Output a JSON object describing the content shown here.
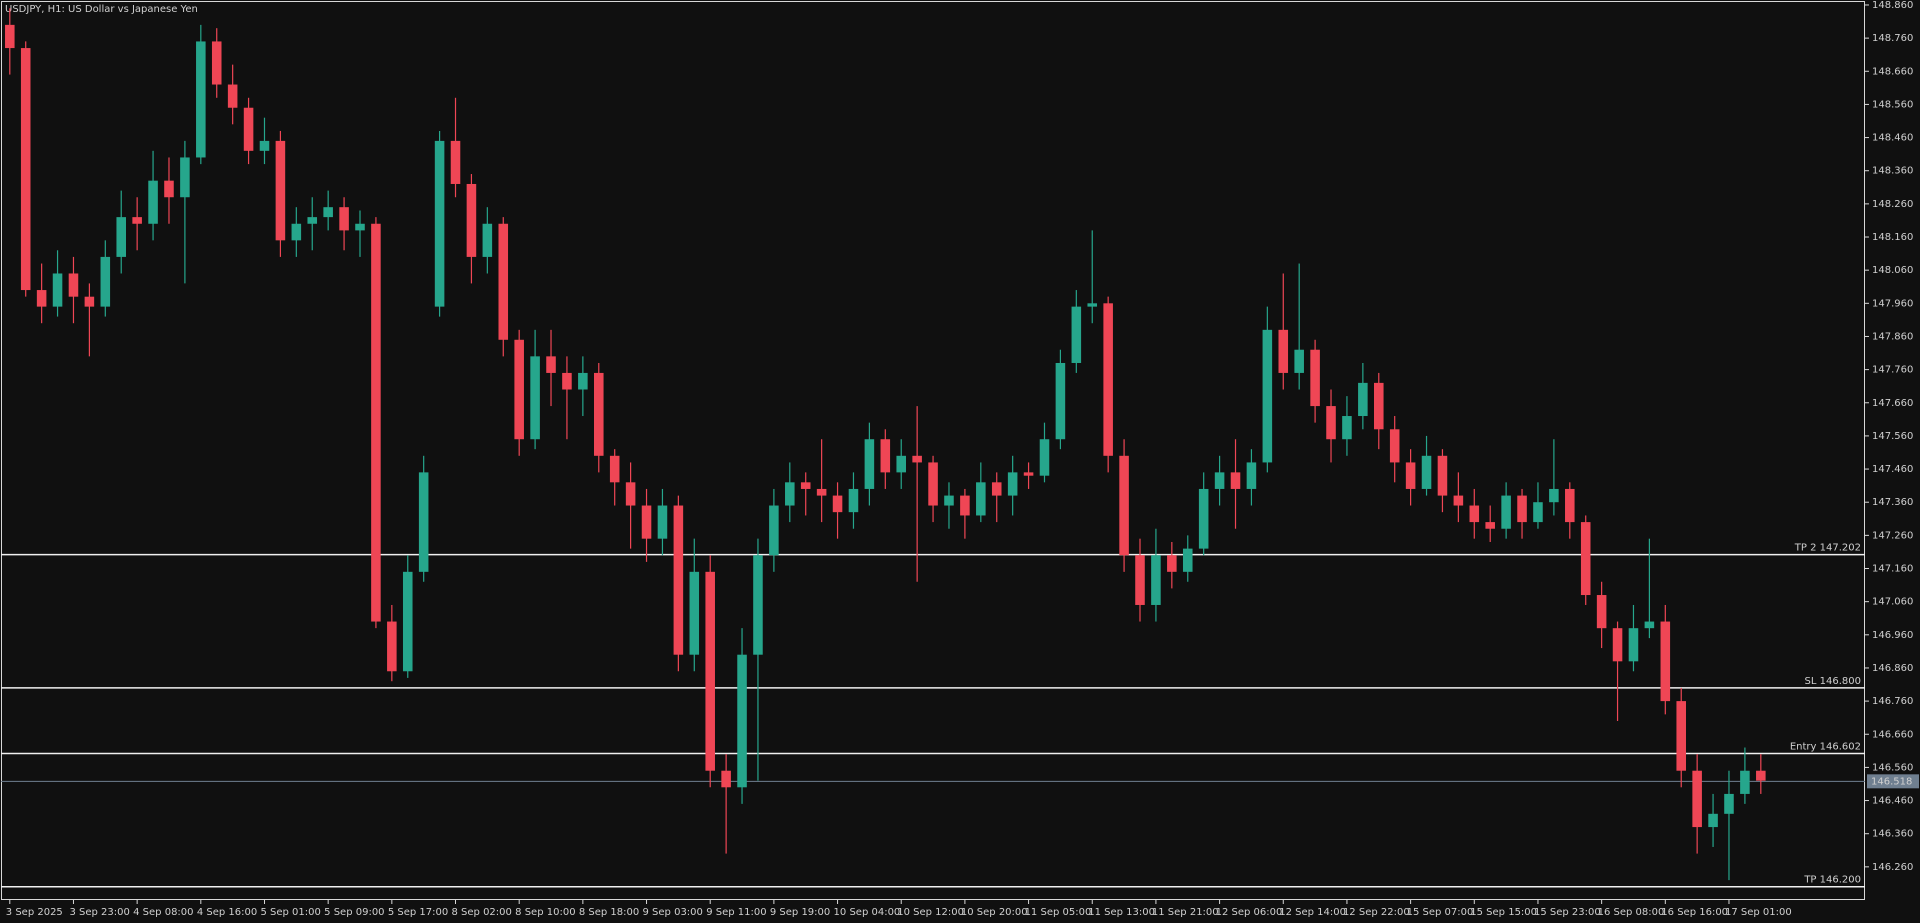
{
  "chart_data": {
    "type": "candlestick",
    "title": "USDJPY, H1:  US Dollar vs Japanese Yen",
    "up_color": "#26a68c",
    "down_color": "#ef4655",
    "ylim": [
      146.16,
      148.875
    ],
    "yticks": [
      {
        "value": 146.26,
        "label": "146.260"
      },
      {
        "value": 146.36,
        "label": "146.360"
      },
      {
        "value": 146.46,
        "label": "146.460"
      },
      {
        "value": 146.56,
        "label": "146.560"
      },
      {
        "value": 146.66,
        "label": "146.660"
      },
      {
        "value": 146.76,
        "label": "146.760"
      },
      {
        "value": 146.86,
        "label": "146.860"
      },
      {
        "value": 146.96,
        "label": "146.960"
      },
      {
        "value": 147.06,
        "label": "147.060"
      },
      {
        "value": 147.16,
        "label": "147.160"
      },
      {
        "value": 147.26,
        "label": "147.260"
      },
      {
        "value": 147.36,
        "label": "147.360"
      },
      {
        "value": 147.46,
        "label": "147.460"
      },
      {
        "value": 147.56,
        "label": "147.560"
      },
      {
        "value": 147.66,
        "label": "147.660"
      },
      {
        "value": 147.76,
        "label": "147.760"
      },
      {
        "value": 147.86,
        "label": "147.860"
      },
      {
        "value": 147.96,
        "label": "147.960"
      },
      {
        "value": 148.06,
        "label": "148.060"
      },
      {
        "value": 148.16,
        "label": "148.160"
      },
      {
        "value": 148.26,
        "label": "148.260"
      },
      {
        "value": 148.36,
        "label": "148.360"
      },
      {
        "value": 148.46,
        "label": "148.460"
      },
      {
        "value": 148.56,
        "label": "148.560"
      },
      {
        "value": 148.66,
        "label": "148.660"
      },
      {
        "value": 148.76,
        "label": "148.760"
      },
      {
        "value": 148.86,
        "label": "148.860"
      }
    ],
    "xticks": [
      {
        "value": 0,
        "label": "3 Sep 2025"
      },
      {
        "value": 4,
        "label": "3 Sep 23:00"
      },
      {
        "value": 8,
        "label": "4 Sep 08:00"
      },
      {
        "value": 12,
        "label": "4 Sep 16:00"
      },
      {
        "value": 16,
        "label": "5 Sep 01:00"
      },
      {
        "value": 20,
        "label": "5 Sep 09:00"
      },
      {
        "value": 24,
        "label": "5 Sep 17:00"
      },
      {
        "value": 28,
        "label": "8 Sep 02:00"
      },
      {
        "value": 32,
        "label": "8 Sep 10:00"
      },
      {
        "value": 36,
        "label": "8 Sep 18:00"
      },
      {
        "value": 40,
        "label": "9 Sep 03:00"
      },
      {
        "value": 44,
        "label": "9 Sep 11:00"
      },
      {
        "value": 48,
        "label": "9 Sep 19:00"
      },
      {
        "value": 52,
        "label": "10 Sep 04:00"
      },
      {
        "value": 56,
        "label": "10 Sep 12:00"
      },
      {
        "value": 60,
        "label": "10 Sep 20:00"
      },
      {
        "value": 64,
        "label": "11 Sep 05:00"
      },
      {
        "value": 68,
        "label": "11 Sep 13:00"
      },
      {
        "value": 72,
        "label": "11 Sep 21:00"
      },
      {
        "value": 76,
        "label": "12 Sep 06:00"
      },
      {
        "value": 80,
        "label": "12 Sep 14:00"
      },
      {
        "value": 84,
        "label": "12 Sep 22:00"
      },
      {
        "value": 88,
        "label": "15 Sep 07:00"
      },
      {
        "value": 92,
        "label": "15 Sep 15:00"
      },
      {
        "value": 96,
        "label": "15 Sep 23:00"
      },
      {
        "value": 100,
        "label": "16 Sep 08:00"
      },
      {
        "value": 104,
        "label": "16 Sep 16:00"
      },
      {
        "value": 108,
        "label": "17 Sep 01:00"
      }
    ],
    "levels": [
      {
        "label": "TP 2 147.202",
        "value": 147.202
      },
      {
        "label": "SL 146.800",
        "value": 146.8
      },
      {
        "label": "Entry 146.602",
        "value": 146.602
      },
      {
        "label": "TP 146.200",
        "value": 146.2
      }
    ],
    "bid": 146.518,
    "ohlc": [
      [
        148.8,
        148.85,
        148.65,
        148.73
      ],
      [
        148.73,
        148.75,
        147.98,
        148.0
      ],
      [
        148.0,
        148.08,
        147.9,
        147.95
      ],
      [
        147.95,
        148.12,
        147.92,
        148.05
      ],
      [
        148.05,
        148.1,
        147.9,
        147.98
      ],
      [
        147.98,
        148.02,
        147.8,
        147.95
      ],
      [
        147.95,
        148.15,
        147.92,
        148.1
      ],
      [
        148.1,
        148.3,
        148.05,
        148.22
      ],
      [
        148.22,
        148.28,
        148.12,
        148.2
      ],
      [
        148.2,
        148.42,
        148.15,
        148.33
      ],
      [
        148.33,
        148.4,
        148.2,
        148.28
      ],
      [
        148.28,
        148.45,
        148.02,
        148.4
      ],
      [
        148.4,
        148.8,
        148.38,
        148.75
      ],
      [
        148.75,
        148.79,
        148.58,
        148.62
      ],
      [
        148.62,
        148.68,
        148.5,
        148.55
      ],
      [
        148.55,
        148.58,
        148.38,
        148.42
      ],
      [
        148.42,
        148.52,
        148.38,
        148.45
      ],
      [
        148.45,
        148.48,
        148.1,
        148.15
      ],
      [
        148.15,
        148.25,
        148.1,
        148.2
      ],
      [
        148.2,
        148.28,
        148.12,
        148.22
      ],
      [
        148.22,
        148.3,
        148.18,
        148.25
      ],
      [
        148.25,
        148.28,
        148.12,
        148.18
      ],
      [
        148.18,
        148.24,
        148.1,
        148.2
      ],
      [
        148.2,
        148.22,
        146.98,
        147.0
      ],
      [
        147.0,
        147.05,
        146.82,
        146.85
      ],
      [
        146.85,
        147.2,
        146.83,
        147.15
      ],
      [
        147.15,
        147.5,
        147.12,
        147.45
      ],
      [
        147.95,
        148.48,
        147.92,
        148.45
      ],
      [
        148.45,
        148.58,
        148.28,
        148.32
      ],
      [
        148.32,
        148.35,
        148.02,
        148.1
      ],
      [
        148.1,
        148.25,
        148.05,
        148.2
      ],
      [
        148.2,
        148.22,
        147.8,
        147.85
      ],
      [
        147.85,
        147.88,
        147.5,
        147.55
      ],
      [
        147.55,
        147.88,
        147.52,
        147.8
      ],
      [
        147.8,
        147.88,
        147.65,
        147.75
      ],
      [
        147.75,
        147.8,
        147.55,
        147.7
      ],
      [
        147.7,
        147.8,
        147.62,
        147.75
      ],
      [
        147.75,
        147.78,
        147.45,
        147.5
      ],
      [
        147.5,
        147.52,
        147.35,
        147.42
      ],
      [
        147.42,
        147.48,
        147.22,
        147.35
      ],
      [
        147.35,
        147.4,
        147.18,
        147.25
      ],
      [
        147.25,
        147.4,
        147.2,
        147.35
      ],
      [
        147.35,
        147.38,
        146.85,
        146.9
      ],
      [
        146.9,
        147.25,
        146.85,
        147.15
      ],
      [
        147.15,
        147.2,
        146.5,
        146.55
      ],
      [
        146.55,
        146.6,
        146.3,
        146.5
      ],
      [
        146.5,
        146.98,
        146.45,
        146.9
      ],
      [
        146.9,
        147.25,
        146.52,
        147.2
      ],
      [
        147.2,
        147.4,
        147.15,
        147.35
      ],
      [
        147.35,
        147.48,
        147.3,
        147.42
      ],
      [
        147.42,
        147.45,
        147.32,
        147.4
      ],
      [
        147.4,
        147.55,
        147.3,
        147.38
      ],
      [
        147.38,
        147.42,
        147.25,
        147.33
      ],
      [
        147.33,
        147.45,
        147.28,
        147.4
      ],
      [
        147.4,
        147.6,
        147.35,
        147.55
      ],
      [
        147.55,
        147.58,
        147.4,
        147.45
      ],
      [
        147.45,
        147.55,
        147.4,
        147.5
      ],
      [
        147.5,
        147.65,
        147.12,
        147.48
      ],
      [
        147.48,
        147.5,
        147.3,
        147.35
      ],
      [
        147.35,
        147.42,
        147.28,
        147.38
      ],
      [
        147.38,
        147.4,
        147.25,
        147.32
      ],
      [
        147.32,
        147.48,
        147.3,
        147.42
      ],
      [
        147.42,
        147.45,
        147.3,
        147.38
      ],
      [
        147.38,
        147.5,
        147.32,
        147.45
      ],
      [
        147.45,
        147.48,
        147.4,
        147.44
      ],
      [
        147.44,
        147.6,
        147.42,
        147.55
      ],
      [
        147.55,
        147.82,
        147.52,
        147.78
      ],
      [
        147.78,
        148.0,
        147.75,
        147.95
      ],
      [
        147.95,
        148.18,
        147.9,
        147.96
      ],
      [
        147.96,
        147.98,
        147.45,
        147.5
      ],
      [
        147.5,
        147.55,
        147.15,
        147.2
      ],
      [
        147.2,
        147.25,
        147.0,
        147.05
      ],
      [
        147.05,
        147.28,
        147.0,
        147.2
      ],
      [
        147.2,
        147.24,
        147.1,
        147.15
      ],
      [
        147.15,
        147.26,
        147.12,
        147.22
      ],
      [
        147.22,
        147.45,
        147.2,
        147.4
      ],
      [
        147.4,
        147.5,
        147.35,
        147.45
      ],
      [
        147.45,
        147.55,
        147.28,
        147.4
      ],
      [
        147.4,
        147.52,
        147.35,
        147.48
      ],
      [
        147.48,
        147.95,
        147.45,
        147.88
      ],
      [
        147.88,
        148.05,
        147.7,
        147.75
      ],
      [
        147.75,
        148.08,
        147.7,
        147.82
      ],
      [
        147.82,
        147.85,
        147.6,
        147.65
      ],
      [
        147.65,
        147.7,
        147.48,
        147.55
      ],
      [
        147.55,
        147.68,
        147.5,
        147.62
      ],
      [
        147.62,
        147.78,
        147.58,
        147.72
      ],
      [
        147.72,
        147.75,
        147.52,
        147.58
      ],
      [
        147.58,
        147.62,
        147.42,
        147.48
      ],
      [
        147.48,
        147.52,
        147.35,
        147.4
      ],
      [
        147.4,
        147.56,
        147.38,
        147.5
      ],
      [
        147.5,
        147.52,
        147.33,
        147.38
      ],
      [
        147.38,
        147.45,
        147.3,
        147.35
      ],
      [
        147.35,
        147.4,
        147.25,
        147.3
      ],
      [
        147.3,
        147.35,
        147.24,
        147.28
      ],
      [
        147.28,
        147.42,
        147.25,
        147.38
      ],
      [
        147.38,
        147.4,
        147.25,
        147.3
      ],
      [
        147.3,
        147.42,
        147.28,
        147.36
      ],
      [
        147.36,
        147.55,
        147.32,
        147.4
      ],
      [
        147.4,
        147.42,
        147.25,
        147.3
      ],
      [
        147.3,
        147.32,
        147.05,
        147.08
      ],
      [
        147.08,
        147.12,
        146.92,
        146.98
      ],
      [
        146.98,
        147.0,
        146.7,
        146.88
      ],
      [
        146.88,
        147.05,
        146.85,
        146.98
      ],
      [
        146.98,
        147.25,
        146.95,
        147.0
      ],
      [
        147.0,
        147.05,
        146.72,
        146.76
      ],
      [
        146.76,
        146.8,
        146.5,
        146.55
      ],
      [
        146.55,
        146.6,
        146.3,
        146.38
      ],
      [
        146.38,
        146.48,
        146.32,
        146.42
      ],
      [
        146.42,
        146.55,
        146.22,
        146.48
      ],
      [
        146.48,
        146.62,
        146.45,
        146.55
      ],
      [
        146.55,
        146.6,
        146.48,
        146.52
      ]
    ]
  }
}
